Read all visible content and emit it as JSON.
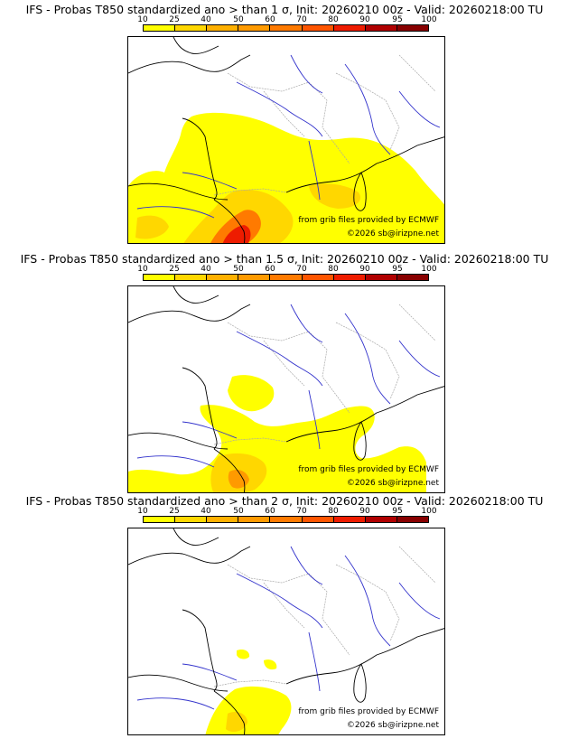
{
  "panels": [
    {
      "title": "IFS - Probas T850  standardized ano > than 1 σ, Init: 20260210 00z - Valid: 20260218:00 TU",
      "source": "from grib files provided by ECMWF",
      "copyright": "©2026 sb@irizpne.net"
    },
    {
      "title": "IFS - Probas T850  standardized ano > than 1.5 σ, Init: 20260210 00z - Valid: 20260218:00 TU",
      "source": "from grib files provided by ECMWF",
      "copyright": "©2026 sb@irizpne.net"
    },
    {
      "title": "IFS - Probas T850  standardized ano > than 2 σ, Init: 20260210 00z - Valid: 20260218:00 TU",
      "source": "from grib files provided by ECMWF",
      "copyright": "©2026 sb@irizpne.net"
    }
  ],
  "legend": {
    "labels": [
      "10",
      "25",
      "40",
      "50",
      "60",
      "70",
      "80",
      "90",
      "95",
      "100"
    ],
    "colors": [
      "#ffff00",
      "#ffd700",
      "#ffb000",
      "#ff9a00",
      "#ff7a00",
      "#ff5500",
      "#ee1c00",
      "#b00000",
      "#880000",
      "#5a0000"
    ]
  },
  "colors": {
    "coast": "#000000",
    "rivers": "#3333cc",
    "borders": "#a8a8a8"
  }
}
